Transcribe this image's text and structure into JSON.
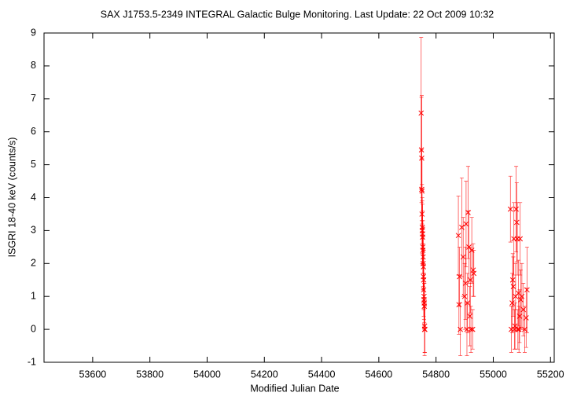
{
  "chart_data": {
    "type": "scatter",
    "title": "SAX J1753.5-2349   INTEGRAL Galactic Bulge Monitoring.  Last Update: 22 Oct 2009 10:32",
    "x_label": "Modified Julian Date",
    "y_label": "ISGRI 18-40 keV (counts/s)",
    "xlim": [
      53430,
      55213
    ],
    "ylim": [
      -1,
      9
    ],
    "xticks": [
      53600,
      53800,
      54000,
      54200,
      54400,
      54600,
      54800,
      55000,
      55200
    ],
    "yticks": [
      -1,
      0,
      1,
      2,
      3,
      4,
      5,
      6,
      7,
      8,
      9
    ],
    "series": [
      {
        "color": "#ff0000",
        "x": [
          54748,
          54749,
          54750,
          54750,
          54751,
          54751,
          54752,
          54752,
          54753,
          54753,
          54754,
          54754,
          54755,
          54755,
          54756,
          54756,
          54757,
          54757,
          54758,
          54758,
          54759,
          54759,
          54760,
          54760,
          54761,
          54878,
          54880,
          54882,
          54885,
          54890,
          54895,
          54900,
          54903,
          54905,
          54908,
          54910,
          54912,
          54915,
          54918,
          54920,
          54922,
          54925,
          54928,
          54930,
          54932,
          55060,
          55063,
          55066,
          55068,
          55070,
          55072,
          55074,
          55076,
          55078,
          55080,
          55082,
          55084,
          55086,
          55088,
          55090,
          55092,
          55094,
          55096,
          55100,
          55105,
          55110,
          55115,
          55118
        ],
        "values": [
          6.57,
          5.45,
          5.2,
          4.25,
          4.2,
          3.5,
          3.1,
          3.0,
          2.9,
          2.8,
          2.5,
          2.4,
          2.2,
          2.0,
          1.9,
          1.6,
          1.5,
          1.2,
          1.0,
          0.9,
          0.8,
          0.7,
          0.1,
          0,
          0,
          2.85,
          0.75,
          1.6,
          0,
          3.1,
          2.2,
          1.0,
          1.4,
          3.2,
          0,
          0.8,
          3.55,
          2.5,
          0.4,
          1.5,
          0,
          2.4,
          0,
          1.8,
          1.7,
          3.65,
          0,
          0.8,
          1.5,
          1.3,
          2.75,
          0,
          0.1,
          1.0,
          3.65,
          3.25,
          2.75,
          0,
          1.1,
          0,
          0.4,
          2.75,
          0.9,
          1.0,
          0.6,
          0,
          0.35,
          1.2
        ],
        "errors": [
          2.3,
          1.6,
          1.9,
          1.2,
          1.0,
          0.9,
          0.8,
          1.0,
          0.9,
          0.8,
          0.8,
          0.7,
          0.9,
          0.8,
          0.7,
          0.8,
          0.9,
          0.8,
          0.7,
          0.8,
          0.6,
          0.7,
          0.8,
          0.8,
          0.7,
          1.2,
          0.9,
          0.9,
          0.8,
          1.5,
          1.2,
          1.0,
          1.1,
          1.3,
          0.8,
          0.9,
          1.4,
          1.1,
          0.9,
          1.0,
          0.7,
          1.0,
          0.6,
          0.8,
          0.7,
          1.0,
          0.7,
          0.9,
          0.8,
          0.9,
          1.1,
          0.6,
          0.7,
          1.0,
          1.3,
          1.2,
          1.1,
          0.6,
          1.0,
          0.7,
          0.8,
          1.1,
          0.9,
          1.0,
          0.8,
          0.7,
          0.9,
          1.3
        ]
      }
    ]
  }
}
